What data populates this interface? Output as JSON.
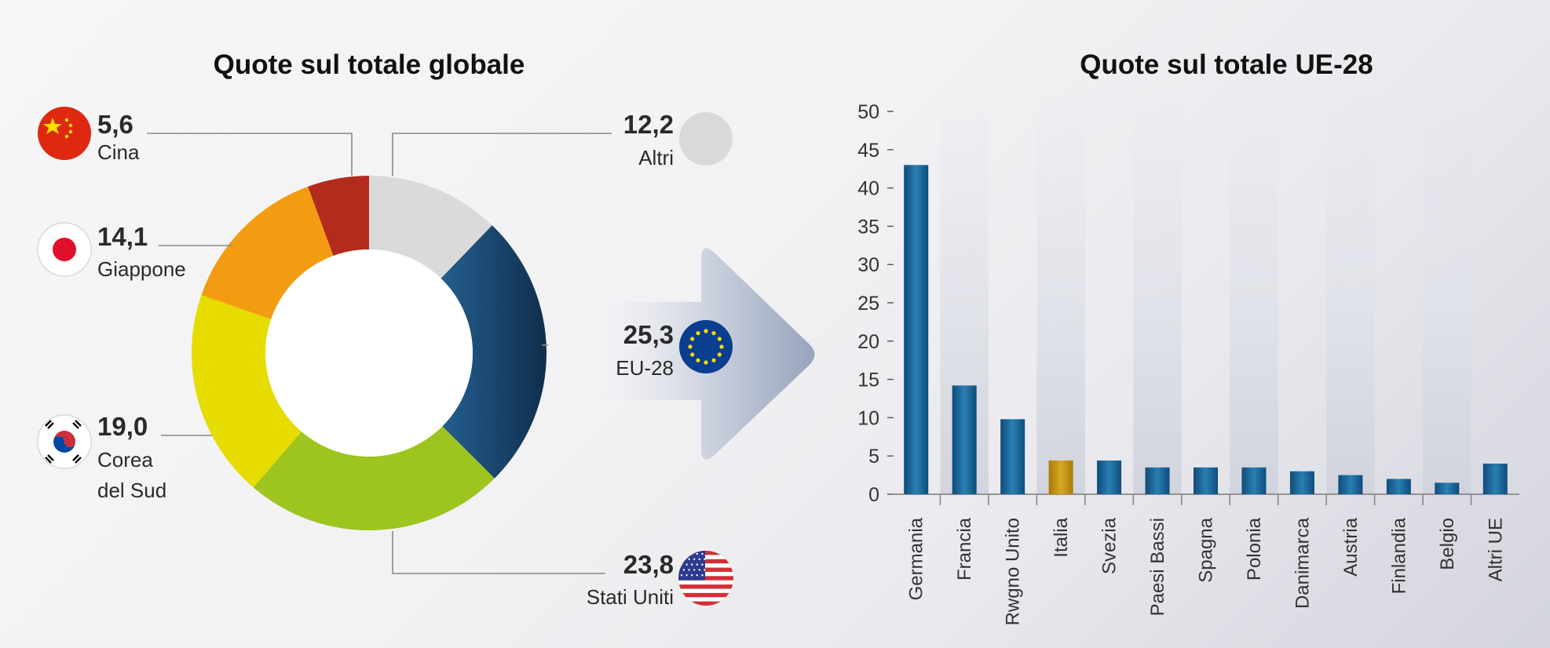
{
  "colors": {
    "cina": "#b32b1c",
    "giappone": "#f39c12",
    "corea": "#e6dc00",
    "usa": "#9dc41f",
    "eu": "#1f4f7a",
    "altri": "#dadada",
    "bar": "#1b5e8c",
    "bar_highlight": "#c89a1a"
  },
  "chart_data": [
    {
      "type": "pie",
      "title": "Quote sul totale globale",
      "slices": [
        {
          "key": "altri",
          "label": "Altri",
          "value_label": "12,2",
          "value": 12.2,
          "icon": "grey-circle-icon"
        },
        {
          "key": "eu",
          "label": "EU-28",
          "value_label": "25,3",
          "value": 25.3,
          "icon": "eu-flag-icon"
        },
        {
          "key": "usa",
          "label": "Stati Uniti",
          "value_label": "23,8",
          "value": 23.8,
          "icon": "us-flag-icon"
        },
        {
          "key": "corea",
          "label": "Corea del Sud",
          "label_lines": [
            "Corea",
            "del Sud"
          ],
          "value_label": "19,0",
          "value": 19.0,
          "icon": "south-korea-flag-icon"
        },
        {
          "key": "giappone",
          "label": "Giappone",
          "value_label": "14,1",
          "value": 14.1,
          "icon": "japan-flag-icon"
        },
        {
          "key": "cina",
          "label": "Cina",
          "value_label": "5,6",
          "value": 5.6,
          "icon": "china-flag-icon"
        }
      ]
    },
    {
      "type": "bar",
      "title": "Quote sul totale UE-28",
      "categories": [
        "Germania",
        "Francia",
        "Rwgno Unito",
        "Italia",
        "Svezia",
        "Paesi Bassi",
        "Spagna",
        "Polonia",
        "Danimarca",
        "Austria",
        "Finlandia",
        "Belgio",
        "Altri UE"
      ],
      "values": [
        43,
        14.2,
        9.8,
        4.4,
        4.4,
        3.5,
        3.5,
        3.5,
        3.0,
        2.5,
        2.0,
        1.5,
        4.0
      ],
      "highlight": "Italia",
      "ylim": [
        0,
        50
      ],
      "yticks": [
        "0",
        "5",
        "10",
        "15",
        "20",
        "25",
        "30",
        "35",
        "40",
        "45",
        "50"
      ],
      "xlabel": "",
      "ylabel": ""
    }
  ]
}
